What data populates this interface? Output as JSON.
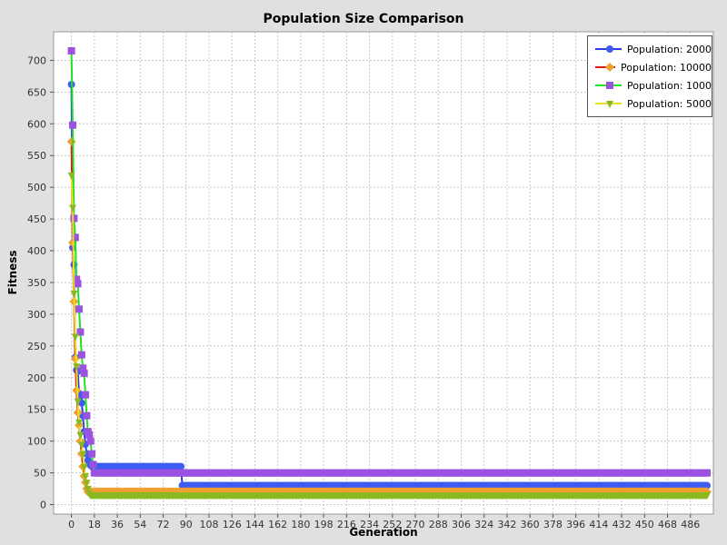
{
  "chart_data": {
    "type": "line",
    "title": "Population Size Comparison",
    "xlabel": "Generation",
    "ylabel": "Fitness",
    "xlim": [
      -14,
      504
    ],
    "ylim": [
      -15,
      745
    ],
    "xticks": [
      0,
      18,
      36,
      54,
      72,
      90,
      108,
      126,
      144,
      162,
      180,
      198,
      216,
      234,
      252,
      270,
      288,
      306,
      324,
      342,
      360,
      378,
      396,
      414,
      432,
      450,
      468,
      486
    ],
    "yticks": [
      0,
      50,
      100,
      150,
      200,
      250,
      300,
      350,
      400,
      450,
      500,
      550,
      600,
      650,
      700
    ],
    "grid": true,
    "legend_position": "top-right",
    "series": [
      {
        "name": "Population: 2000",
        "color": "#2a3fe0",
        "marker": "circle",
        "points": [
          [
            0,
            662
          ],
          [
            1,
            405
          ],
          [
            2,
            378
          ],
          [
            3,
            232
          ],
          [
            4,
            212
          ],
          [
            5,
            210
          ],
          [
            6,
            175
          ],
          [
            7,
            170
          ],
          [
            8,
            160
          ],
          [
            9,
            140
          ],
          [
            10,
            115
          ],
          [
            11,
            95
          ],
          [
            12,
            80
          ],
          [
            13,
            70
          ],
          [
            14,
            65
          ],
          [
            15,
            62
          ],
          [
            16,
            60
          ],
          [
            86,
            60
          ],
          [
            87,
            30
          ],
          [
            499,
            30
          ]
        ]
      },
      {
        "name": "Population: 10000",
        "color": "#e01818",
        "marker": "diamond",
        "points": [
          [
            0,
            572
          ],
          [
            1,
            413
          ],
          [
            2,
            320
          ],
          [
            3,
            230
          ],
          [
            4,
            180
          ],
          [
            5,
            145
          ],
          [
            6,
            125
          ],
          [
            7,
            100
          ],
          [
            8,
            80
          ],
          [
            9,
            60
          ],
          [
            10,
            45
          ],
          [
            11,
            35
          ],
          [
            12,
            25
          ],
          [
            13,
            20
          ],
          [
            499,
            20
          ]
        ]
      },
      {
        "name": "Population: 1000",
        "color": "#22e022",
        "marker": "square",
        "points": [
          [
            0,
            715
          ],
          [
            1,
            598
          ],
          [
            2,
            451
          ],
          [
            3,
            421
          ],
          [
            4,
            355
          ],
          [
            5,
            348
          ],
          [
            6,
            308
          ],
          [
            7,
            272
          ],
          [
            8,
            236
          ],
          [
            9,
            215
          ],
          [
            10,
            207
          ],
          [
            11,
            173
          ],
          [
            12,
            140
          ],
          [
            13,
            115
          ],
          [
            14,
            110
          ],
          [
            15,
            100
          ],
          [
            16,
            80
          ],
          [
            17,
            63
          ],
          [
            18,
            50
          ],
          [
            499,
            50
          ]
        ]
      },
      {
        "name": "Population: 5000",
        "color": "#e8e020",
        "marker": "triangle-down",
        "points": [
          [
            0,
            519
          ],
          [
            1,
            468
          ],
          [
            2,
            333
          ],
          [
            3,
            265
          ],
          [
            4,
            218
          ],
          [
            5,
            163
          ],
          [
            6,
            130
          ],
          [
            7,
            110
          ],
          [
            8,
            95
          ],
          [
            9,
            80
          ],
          [
            10,
            60
          ],
          [
            11,
            45
          ],
          [
            12,
            35
          ],
          [
            13,
            25
          ],
          [
            14,
            18
          ],
          [
            15,
            15
          ],
          [
            499,
            15
          ]
        ]
      }
    ]
  },
  "marker_fills": {
    "Population: 2000": "#3f5cf2",
    "Population: 10000": "#f0a030",
    "Population: 1000": "#9c52e0",
    "Population: 5000": "#8ab820"
  }
}
